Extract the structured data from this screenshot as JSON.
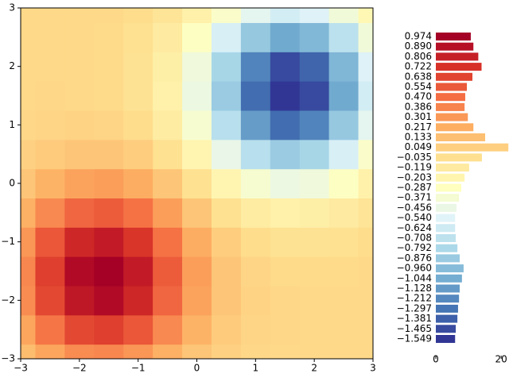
{
  "chart_data": [
    {
      "type": "contour",
      "x": [
        -3,
        -2.5,
        -2,
        -1.5,
        -1,
        -0.5,
        0,
        0.5,
        1,
        1.5,
        2,
        2.5,
        3
      ],
      "y": [
        -3,
        -2.5,
        -2,
        -1.5,
        -1,
        -0.5,
        0,
        0.5,
        1,
        1.5,
        2,
        2.5,
        3
      ],
      "z": [
        [
          0.14,
          0.25,
          0.35,
          0.37,
          0.31,
          0.2,
          0.1,
          0.04,
          0.01,
          0,
          0,
          0,
          0
        ],
        [
          0.25,
          0.44,
          0.62,
          0.66,
          0.56,
          0.36,
          0.19,
          0.07,
          0.02,
          0.01,
          0,
          0,
          0
        ],
        [
          0.35,
          0.62,
          0.85,
          0.92,
          0.77,
          0.5,
          0.26,
          0.1,
          0.03,
          0.01,
          0,
          0,
          0
        ],
        [
          0.37,
          0.66,
          0.92,
          0.99,
          0.83,
          0.54,
          0.28,
          0.1,
          0.02,
          -0.01,
          -0.01,
          -0.01,
          0
        ],
        [
          0.31,
          0.56,
          0.77,
          0.83,
          0.7,
          0.45,
          0.22,
          0.06,
          -0.02,
          -0.05,
          -0.05,
          -0.04,
          -0.02
        ],
        [
          0.2,
          0.36,
          0.5,
          0.54,
          0.45,
          0.28,
          0.1,
          -0.04,
          -0.13,
          -0.17,
          -0.16,
          -0.12,
          -0.07
        ],
        [
          0.1,
          0.19,
          0.26,
          0.28,
          0.22,
          0.1,
          -0.04,
          -0.21,
          -0.36,
          -0.44,
          -0.41,
          -0.3,
          -0.17
        ],
        [
          0.04,
          0.07,
          0.1,
          0.1,
          0.06,
          -0.04,
          -0.21,
          -0.47,
          -0.73,
          -0.87,
          -0.81,
          -0.58,
          -0.33
        ],
        [
          0.01,
          0.02,
          0.03,
          0.02,
          -0.02,
          -0.13,
          -0.36,
          -0.73,
          -1.12,
          -1.33,
          -1.23,
          -0.89,
          -0.5
        ],
        [
          0,
          0.01,
          0,
          -0.01,
          -0.05,
          -0.17,
          -0.44,
          -0.87,
          -1.33,
          -1.58,
          -1.47,
          -1.06,
          -0.6
        ],
        [
          0,
          0,
          0,
          -0.01,
          -0.05,
          -0.16,
          -0.41,
          -0.81,
          -1.23,
          -1.47,
          -1.36,
          -0.99,
          -0.55
        ],
        [
          0,
          0,
          0,
          -0.01,
          -0.04,
          -0.12,
          -0.3,
          -0.58,
          -0.89,
          -1.06,
          -0.98,
          -0.71,
          -0.4
        ],
        [
          0,
          0,
          0,
          0,
          -0.02,
          -0.07,
          -0.17,
          -0.33,
          -0.5,
          -0.6,
          -0.55,
          -0.4,
          -0.23
        ]
      ],
      "zlim": [
        -1.549,
        0.974
      ],
      "colormap": [
        "#313695",
        "#4575b4",
        "#74add1",
        "#abd9e9",
        "#e0f3f8",
        "#ffffbf",
        "#fee090",
        "#fdae61",
        "#f46d43",
        "#d73027",
        "#a50026"
      ],
      "xlim": [
        -3,
        3
      ],
      "ylim": [
        -3,
        3
      ],
      "xticks": [
        {
          "value": -3,
          "label": "−3"
        },
        {
          "value": -2,
          "label": "−2"
        },
        {
          "value": -1,
          "label": "−1"
        },
        0,
        1,
        2,
        3
      ],
      "yticks": [
        {
          "value": -3,
          "label": "−3"
        },
        {
          "value": -2,
          "label": "−2"
        },
        {
          "value": -1,
          "label": "−1"
        },
        0,
        1,
        2,
        3
      ]
    },
    {
      "type": "barh",
      "categories": [
        "0.974",
        "0.890",
        "0.806",
        "0.722",
        "0.638",
        "0.554",
        "0.470",
        "0.386",
        "0.301",
        "0.217",
        "0.133",
        "0.049",
        "−0.035",
        "−0.119",
        "−0.203",
        "−0.287",
        "−0.371",
        "−0.456",
        "−0.540",
        "−0.624",
        "−0.708",
        "−0.792",
        "−0.876",
        "−0.960",
        "−1.044",
        "−1.128",
        "−1.212",
        "−1.297",
        "−1.381",
        "−1.465",
        "−1.549"
      ],
      "values": [
        10.7,
        11.5,
        13,
        14,
        11.2,
        9.5,
        9,
        8.8,
        9.8,
        11.5,
        15.1,
        22.2,
        14.1,
        10.2,
        8.8,
        7.8,
        7.1,
        6.3,
        5.9,
        5.9,
        6.1,
        6.6,
        7.3,
        8.5,
        8,
        7.3,
        7.1,
        6.8,
        6.6,
        6.1,
        5.9
      ],
      "colormap": [
        "#313695",
        "#4575b4",
        "#74add1",
        "#abd9e9",
        "#e0f3f8",
        "#ffffbf",
        "#fee090",
        "#fdae61",
        "#f46d43",
        "#d73027",
        "#a50026"
      ],
      "xlim": [
        0,
        22.4
      ],
      "xticks": [
        0,
        20
      ]
    }
  ]
}
